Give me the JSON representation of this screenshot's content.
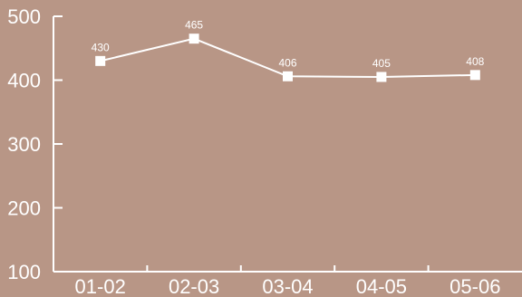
{
  "chart_data": {
    "type": "line",
    "title": "",
    "xlabel": "",
    "ylabel": "",
    "categories": [
      "01-02",
      "02-03",
      "03-04",
      "04-05",
      "05-06"
    ],
    "series": [
      {
        "values": [
          430,
          465,
          406,
          405,
          408
        ]
      }
    ],
    "ylim": [
      100,
      500
    ],
    "yticks": [
      "100",
      "200",
      "300",
      "400",
      "500"
    ],
    "data_labels": [
      "430",
      "465",
      "406",
      "405",
      "408"
    ],
    "grid": false,
    "legend": "none",
    "colors": {
      "background": "#b89686",
      "line": "#ffffff",
      "axis": "#ffffff",
      "text": "#ffffff"
    }
  }
}
